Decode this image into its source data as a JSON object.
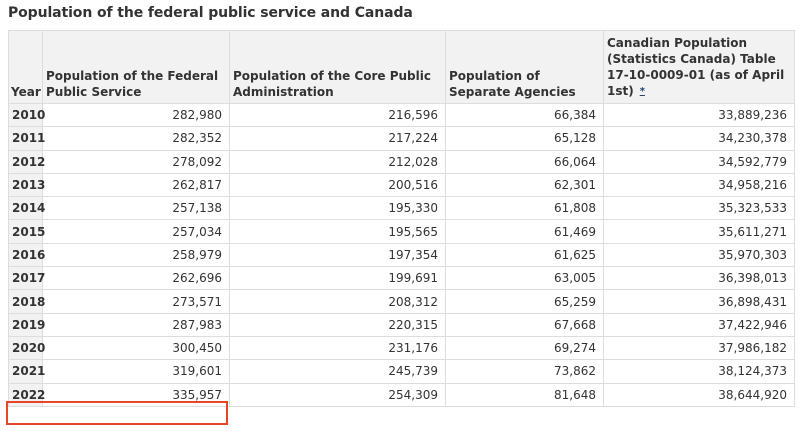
{
  "page": {
    "title": "Population of the federal public service and Canada"
  },
  "table": {
    "headers": {
      "year": "Year",
      "fps": "Population of the Federal Public Service",
      "cpa": "Population of the Core Public Administration",
      "sa": "Population of Separate Agencies",
      "canada": "Canadian Population (Statistics Canada) Table 17-10-0009-01 (as of April 1st)",
      "canada_ref": "*"
    },
    "rows": [
      {
        "year": "2010",
        "fps": "282,980",
        "cpa": "216,596",
        "sa": "66,384",
        "canada": "33,889,236"
      },
      {
        "year": "2011",
        "fps": "282,352",
        "cpa": "217,224",
        "sa": "65,128",
        "canada": "34,230,378"
      },
      {
        "year": "2012",
        "fps": "278,092",
        "cpa": "212,028",
        "sa": "66,064",
        "canada": "34,592,779"
      },
      {
        "year": "2013",
        "fps": "262,817",
        "cpa": "200,516",
        "sa": "62,301",
        "canada": "34,958,216"
      },
      {
        "year": "2014",
        "fps": "257,138",
        "cpa": "195,330",
        "sa": "61,808",
        "canada": "35,323,533"
      },
      {
        "year": "2015",
        "fps": "257,034",
        "cpa": "195,565",
        "sa": "61,469",
        "canada": "35,611,271"
      },
      {
        "year": "2016",
        "fps": "258,979",
        "cpa": "197,354",
        "sa": "61,625",
        "canada": "35,970,303"
      },
      {
        "year": "2017",
        "fps": "262,696",
        "cpa": "199,691",
        "sa": "63,005",
        "canada": "36,398,013"
      },
      {
        "year": "2018",
        "fps": "273,571",
        "cpa": "208,312",
        "sa": "65,259",
        "canada": "36,898,431"
      },
      {
        "year": "2019",
        "fps": "287,983",
        "cpa": "220,315",
        "sa": "67,668",
        "canada": "37,422,946"
      },
      {
        "year": "2020",
        "fps": "300,450",
        "cpa": "231,176",
        "sa": "69,274",
        "canada": "37,986,182"
      },
      {
        "year": "2021",
        "fps": "319,601",
        "cpa": "245,739",
        "sa": "73,862",
        "canada": "38,124,373"
      },
      {
        "year": "2022",
        "fps": "335,957",
        "cpa": "254,309",
        "sa": "81,648",
        "canada": "38,644,920"
      }
    ]
  },
  "colors": {
    "highlight": "#e8442a",
    "header_bg": "#f2f2f2",
    "border": "#dddddd"
  }
}
